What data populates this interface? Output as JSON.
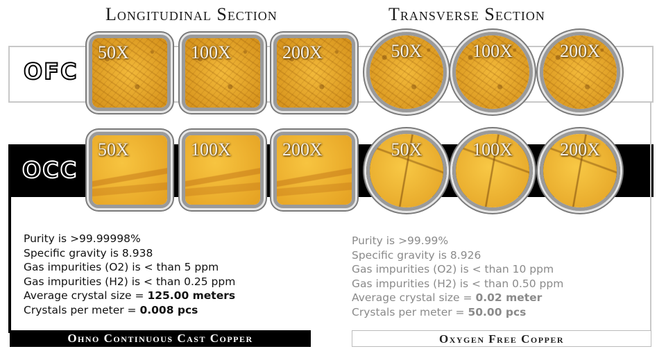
{
  "headings": {
    "longitudinal": "Longitudinal Section",
    "transverse": "Transverse Section"
  },
  "rows": {
    "ofc": {
      "label": "OFC",
      "mags": [
        "50X",
        "100X",
        "200X",
        "50X",
        "100X",
        "200X"
      ]
    },
    "occ": {
      "label": "OCC",
      "mags": [
        "50X",
        "100X",
        "200X",
        "50X",
        "100X",
        "200X"
      ]
    }
  },
  "specs_occ": {
    "purity": "Purity is >99.99998%",
    "gravity": "Specific gravity is 8.938",
    "o2": "Gas impurities (O2) is < than 5 ppm",
    "h2": "Gas impurities (H2) is < than 0.25 ppm",
    "crystal_label": "Average crystal size = ",
    "crystal_value": "125.00 meters",
    "per_meter_label": "Crystals per meter = ",
    "per_meter_value": "0.008 pcs"
  },
  "specs_ofc": {
    "purity": "Purity is >99.99%",
    "gravity": "Specific gravity is 8.926",
    "o2": "Gas impurities (O2) is < than 10 ppm",
    "h2": "Gas impurities (H2) is < than 0.50 ppm",
    "crystal_label": "Average crystal size = ",
    "crystal_value": "0.02 meter",
    "per_meter_label": "Crystals per meter = ",
    "per_meter_value": "50.00 pcs"
  },
  "captions": {
    "occ": "Ohno Continuous Cast Copper",
    "ofc": "Oxygen Free Copper"
  },
  "colors": {
    "copper_light": "#f2b93a",
    "copper_dark": "#d4901a",
    "black": "#000000",
    "gray_text": "#8a8a8a"
  }
}
